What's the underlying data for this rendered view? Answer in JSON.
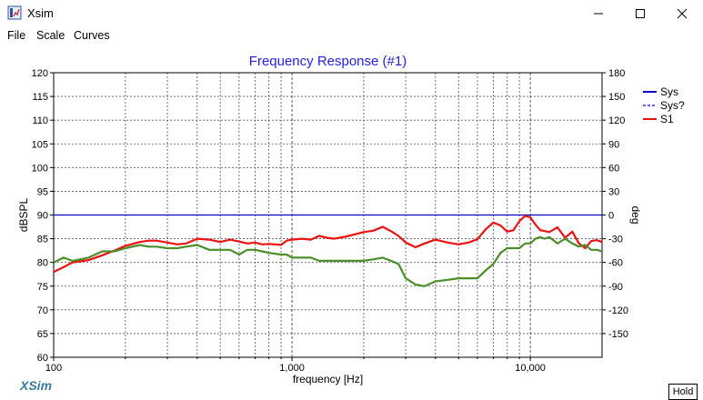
{
  "window": {
    "title": "Xsim"
  },
  "menu": [
    "File",
    "Scale",
    "Curves"
  ],
  "brand": "XSim",
  "hold_label": "Hold",
  "chart_data": {
    "type": "line",
    "title": "Frequency Response (#1)",
    "xlabel": "frequency [Hz]",
    "ylabel_left": "dBSPL",
    "ylabel_right": "deg",
    "x_scale": "log",
    "xlim": [
      100,
      20000
    ],
    "ylim_left": [
      60,
      120
    ],
    "ylim_right": [
      -180,
      180
    ],
    "x_tick_labels": [
      "100",
      "1,000",
      "10,000"
    ],
    "y_left_ticks": [
      60,
      65,
      70,
      75,
      80,
      85,
      90,
      95,
      100,
      105,
      110,
      115,
      120
    ],
    "y_right_ticks": [
      -150,
      -120,
      -90,
      -60,
      -30,
      0,
      30,
      60,
      90,
      120,
      150,
      180
    ],
    "grid": true,
    "legend_position": "right",
    "colors": {
      "title": "#2222dd",
      "sys": "#0000cc",
      "s1": "#ee1111",
      "phase": "#4a8f2a"
    },
    "legend": [
      {
        "label": "Sys",
        "style": "solid",
        "color": "#0000cc"
      },
      {
        "label": "Sys?",
        "style": "dashed",
        "color": "#0000cc"
      },
      {
        "label": "S1",
        "style": "solid",
        "color": "#ee1111"
      }
    ],
    "series": [
      {
        "name": "Sys",
        "axis": "right",
        "color": "#0000cc",
        "x": [
          100,
          20000
        ],
        "y": [
          0,
          0
        ]
      },
      {
        "name": "S1",
        "axis": "left",
        "color": "#ee1111",
        "x": [
          100,
          110,
          120,
          140,
          160,
          180,
          200,
          230,
          250,
          270,
          300,
          330,
          360,
          400,
          450,
          500,
          550,
          600,
          650,
          700,
          750,
          800,
          900,
          950,
          1000,
          1100,
          1200,
          1300,
          1400,
          1500,
          1700,
          2000,
          2200,
          2400,
          2600,
          2800,
          3000,
          3300,
          3600,
          4000,
          4500,
          5000,
          5500,
          6000,
          6500,
          7000,
          7500,
          8000,
          8500,
          9000,
          9500,
          10000,
          10500,
          11000,
          11500,
          12000,
          13000,
          14000,
          15000,
          16000,
          17000,
          18000,
          19000,
          20000
        ],
        "y": [
          78,
          79,
          80,
          80.5,
          81.5,
          82.5,
          83.5,
          84.3,
          84.6,
          84.6,
          84.2,
          83.8,
          84,
          85,
          84.8,
          84.3,
          84.8,
          84.4,
          84,
          84.2,
          83.8,
          83.9,
          83.7,
          84.6,
          84.8,
          85,
          84.8,
          85.6,
          85.2,
          85,
          85.5,
          86.4,
          86.7,
          87.5,
          86.6,
          85.6,
          84.2,
          83.2,
          84,
          84.8,
          84.2,
          83.8,
          84.2,
          84.9,
          87,
          88.4,
          87.8,
          86.5,
          86.8,
          88.7,
          89.8,
          89.5,
          88,
          86.8,
          86.6,
          86.4,
          87.4,
          85.2,
          86.5,
          84,
          83,
          84.5,
          84.7,
          84.3
        ]
      },
      {
        "name": "Phase",
        "axis": "right",
        "color": "#4a8f2a",
        "x": [
          100,
          110,
          120,
          140,
          160,
          180,
          200,
          230,
          250,
          270,
          300,
          330,
          360,
          400,
          450,
          500,
          550,
          600,
          650,
          700,
          750,
          800,
          900,
          950,
          1000,
          1100,
          1200,
          1300,
          1400,
          1500,
          1700,
          2000,
          2200,
          2400,
          2600,
          2800,
          3000,
          3300,
          3600,
          4000,
          4500,
          5000,
          5500,
          6000,
          6500,
          7000,
          7500,
          8000,
          8500,
          9000,
          9500,
          10000,
          10500,
          11000,
          11500,
          12000,
          13000,
          14000,
          15000,
          16000,
          17000,
          18000,
          19000,
          20000
        ],
        "y": [
          -60,
          -54,
          -58,
          -54,
          -46,
          -46,
          -42,
          -38,
          -40,
          -40,
          -42,
          -42,
          -40,
          -38,
          -44,
          -44,
          -44,
          -50,
          -44,
          -44,
          -46,
          -48,
          -50,
          -50,
          -54,
          -54,
          -54,
          -58,
          -58,
          -58,
          -58,
          -58,
          -56,
          -54,
          -58,
          -62,
          -80,
          -88,
          -90,
          -84,
          -82,
          -80,
          -80,
          -80,
          -70,
          -62,
          -48,
          -42,
          -42,
          -42,
          -36,
          -36,
          -30,
          -28,
          -30,
          -28,
          -36,
          -30,
          -36,
          -40,
          -38,
          -44,
          -44,
          -46
        ]
      }
    ]
  }
}
